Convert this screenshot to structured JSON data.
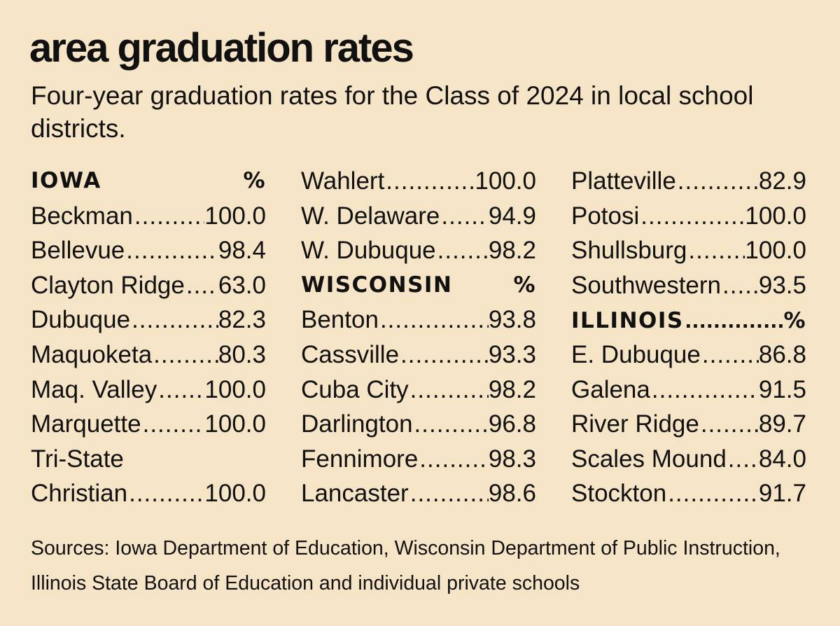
{
  "title": "area graduation rates",
  "subtitle": "Four-year graduation rates for the Class of 2024 in local school districts.",
  "columns": [
    {
      "rows": [
        {
          "type": "header",
          "name": "IOWA",
          "value": "%",
          "dotted": false
        },
        {
          "type": "entry",
          "name": "Beckman",
          "value": "100.0"
        },
        {
          "type": "entry",
          "name": "Bellevue",
          "value": "98.4"
        },
        {
          "type": "entry",
          "name": "Clayton Ridge",
          "value": "63.0"
        },
        {
          "type": "entry",
          "name": "Dubuque",
          "value": "82.3"
        },
        {
          "type": "entry",
          "name": "Maquoketa",
          "value": "80.3"
        },
        {
          "type": "entry",
          "name": "Maq. Valley",
          "value": "100.0"
        },
        {
          "type": "entry",
          "name": "Marquette",
          "value": "100.0"
        },
        {
          "type": "label",
          "name": "Tri-State"
        },
        {
          "type": "entry",
          "name": "Christian",
          "value": "100.0"
        }
      ]
    },
    {
      "rows": [
        {
          "type": "entry",
          "name": "Wahlert",
          "value": "100.0"
        },
        {
          "type": "entry",
          "name": "W. Delaware",
          "value": "94.9"
        },
        {
          "type": "entry",
          "name": "W. Dubuque",
          "value": "98.2"
        },
        {
          "type": "header",
          "name": "WISCONSIN",
          "value": "%",
          "dotted": false
        },
        {
          "type": "entry",
          "name": "Benton",
          "value": "93.8"
        },
        {
          "type": "entry",
          "name": "Cassville",
          "value": "93.3"
        },
        {
          "type": "entry",
          "name": "Cuba City",
          "value": "98.2"
        },
        {
          "type": "entry",
          "name": "Darlington",
          "value": "96.8"
        },
        {
          "type": "entry",
          "name": "Fennimore",
          "value": "98.3"
        },
        {
          "type": "entry",
          "name": "Lancaster",
          "value": "98.6"
        }
      ]
    },
    {
      "rows": [
        {
          "type": "entry",
          "name": "Platteville",
          "value": "82.9"
        },
        {
          "type": "entry",
          "name": "Potosi",
          "value": "100.0"
        },
        {
          "type": "entry",
          "name": "Shullsburg",
          "value": "100.0"
        },
        {
          "type": "entry",
          "name": "Southwestern",
          "value": "93.5"
        },
        {
          "type": "header",
          "name": "ILLINOIS",
          "value": "%",
          "dotted": true
        },
        {
          "type": "entry",
          "name": "E. Dubuque",
          "value": "86.8"
        },
        {
          "type": "entry",
          "name": "Galena",
          "value": "91.5"
        },
        {
          "type": "entry",
          "name": "River Ridge",
          "value": "89.7"
        },
        {
          "type": "entry",
          "name": "Scales Mound",
          "value": "84.0"
        },
        {
          "type": "entry",
          "name": "Stockton",
          "value": "91.7"
        }
      ]
    }
  ],
  "sources": "Sources: Iowa Department of Education, Wisconsin Department of Public Instruction, Illinois State Board of Education and individual private schools",
  "colors": {
    "background": "#f6e4c6",
    "text": "#111111"
  }
}
